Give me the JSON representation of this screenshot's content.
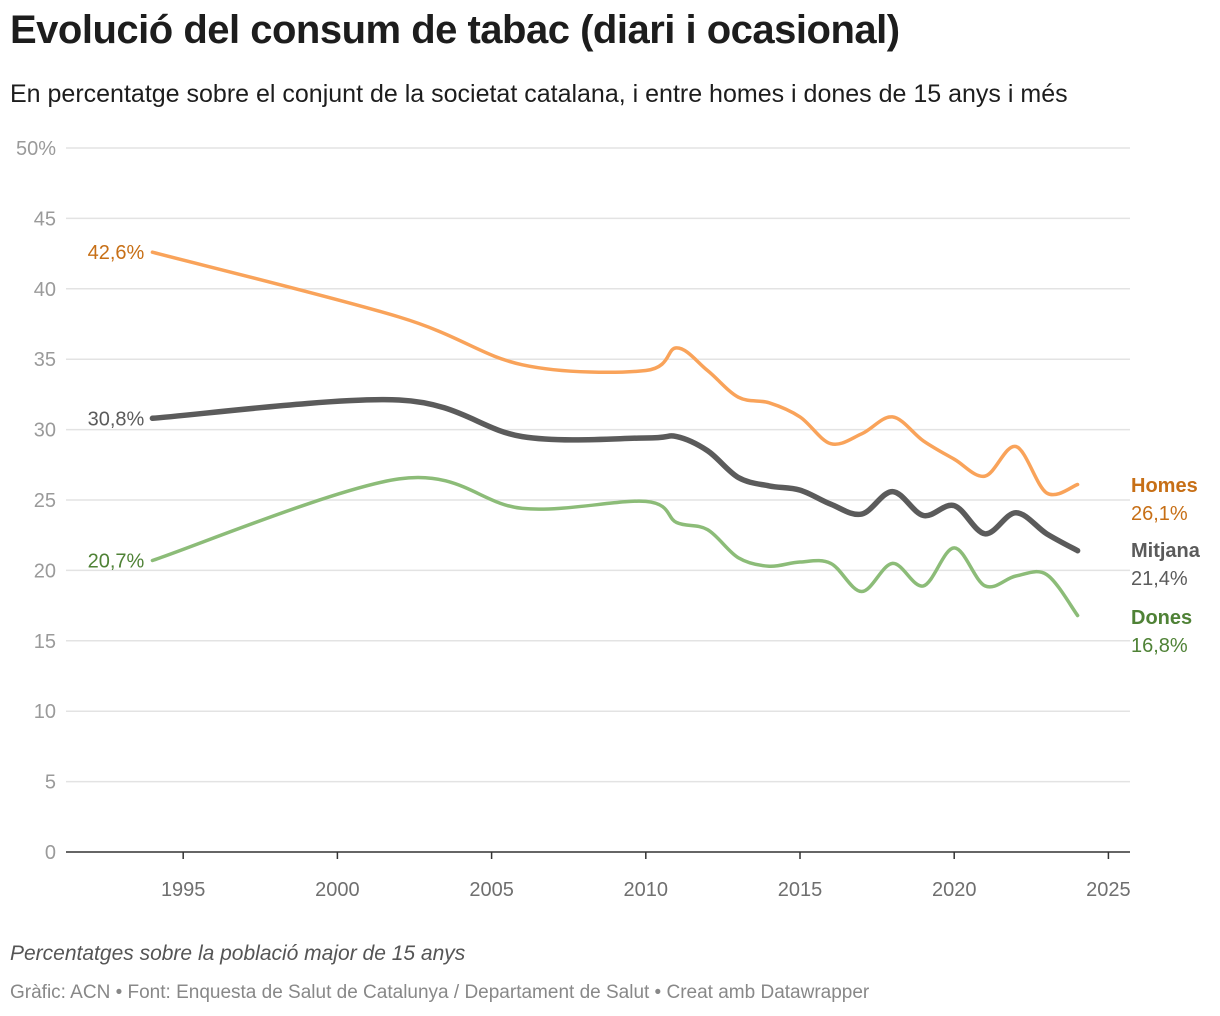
{
  "title": "Evolució del consum de tabac (diari i ocasional)",
  "subtitle": "En percentatge sobre el conjunt de la societat catalana, i entre homes i dones de 15 anys i més",
  "note": "Percentatges sobre la població major de 15 anys",
  "source": "Gràfic: ACN • Font: Enquesta de Salut de Catalunya / Departament de Salut • Creat amb Datawrapper",
  "chart_data": {
    "type": "line",
    "xlim": [
      1991.2,
      2025.7
    ],
    "ylim": [
      0,
      50
    ],
    "x_ticks": [
      "1995",
      "2000",
      "2005",
      "2010",
      "2015",
      "2020",
      "2025"
    ],
    "y_ticks": [
      "0",
      "5",
      "10",
      "15",
      "20",
      "25",
      "30",
      "35",
      "40",
      "45",
      "50%"
    ],
    "grid": true,
    "series": [
      {
        "name": "Homes",
        "color": "#f9a35a",
        "label_color": "#c76f16",
        "end_value_label": "26,1%",
        "start_value_label": "42,6%",
        "stroke_width": 3.5,
        "points": [
          [
            1994,
            42.6
          ],
          [
            2002,
            38
          ],
          [
            2006,
            34.6
          ],
          [
            2010,
            34.2
          ],
          [
            2011,
            35.8
          ],
          [
            2012,
            34.2
          ],
          [
            2013,
            32.3
          ],
          [
            2014,
            31.9
          ],
          [
            2015,
            30.9
          ],
          [
            2016,
            29
          ],
          [
            2017,
            29.7
          ],
          [
            2018,
            30.9
          ],
          [
            2019,
            29.2
          ],
          [
            2020,
            27.9
          ],
          [
            2021,
            26.7
          ],
          [
            2022,
            28.8
          ],
          [
            2023,
            25.5
          ],
          [
            2024,
            26.1
          ]
        ]
      },
      {
        "name": "Mitjana",
        "color": "#5b5b5b",
        "label_color": "#5b5b5b",
        "end_value_label": "21,4%",
        "start_value_label": "30,8%",
        "stroke_width": 5.5,
        "points": [
          [
            1994,
            30.8
          ],
          [
            2002,
            32.1
          ],
          [
            2006,
            29.5
          ],
          [
            2010,
            29.4
          ],
          [
            2011,
            29.5
          ],
          [
            2012,
            28.5
          ],
          [
            2013,
            26.6
          ],
          [
            2014,
            26
          ],
          [
            2015,
            25.7
          ],
          [
            2016,
            24.7
          ],
          [
            2017,
            24
          ],
          [
            2018,
            25.6
          ],
          [
            2019,
            23.9
          ],
          [
            2020,
            24.6
          ],
          [
            2021,
            22.6
          ],
          [
            2022,
            24.1
          ],
          [
            2023,
            22.6
          ],
          [
            2024,
            21.4
          ]
        ]
      },
      {
        "name": "Dones",
        "color": "#8cbc78",
        "label_color": "#4f8236",
        "end_value_label": "16,8%",
        "start_value_label": "20,7%",
        "stroke_width": 3.5,
        "points": [
          [
            1994,
            20.7
          ],
          [
            2002,
            26.5
          ],
          [
            2006,
            24.4
          ],
          [
            2010,
            24.9
          ],
          [
            2011,
            23.4
          ],
          [
            2012,
            22.9
          ],
          [
            2013,
            20.9
          ],
          [
            2014,
            20.3
          ],
          [
            2015,
            20.6
          ],
          [
            2016,
            20.5
          ],
          [
            2017,
            18.5
          ],
          [
            2018,
            20.5
          ],
          [
            2019,
            18.9
          ],
          [
            2020,
            21.6
          ],
          [
            2021,
            18.9
          ],
          [
            2022,
            19.6
          ],
          [
            2023,
            19.7
          ],
          [
            2024,
            16.8
          ]
        ]
      }
    ]
  }
}
